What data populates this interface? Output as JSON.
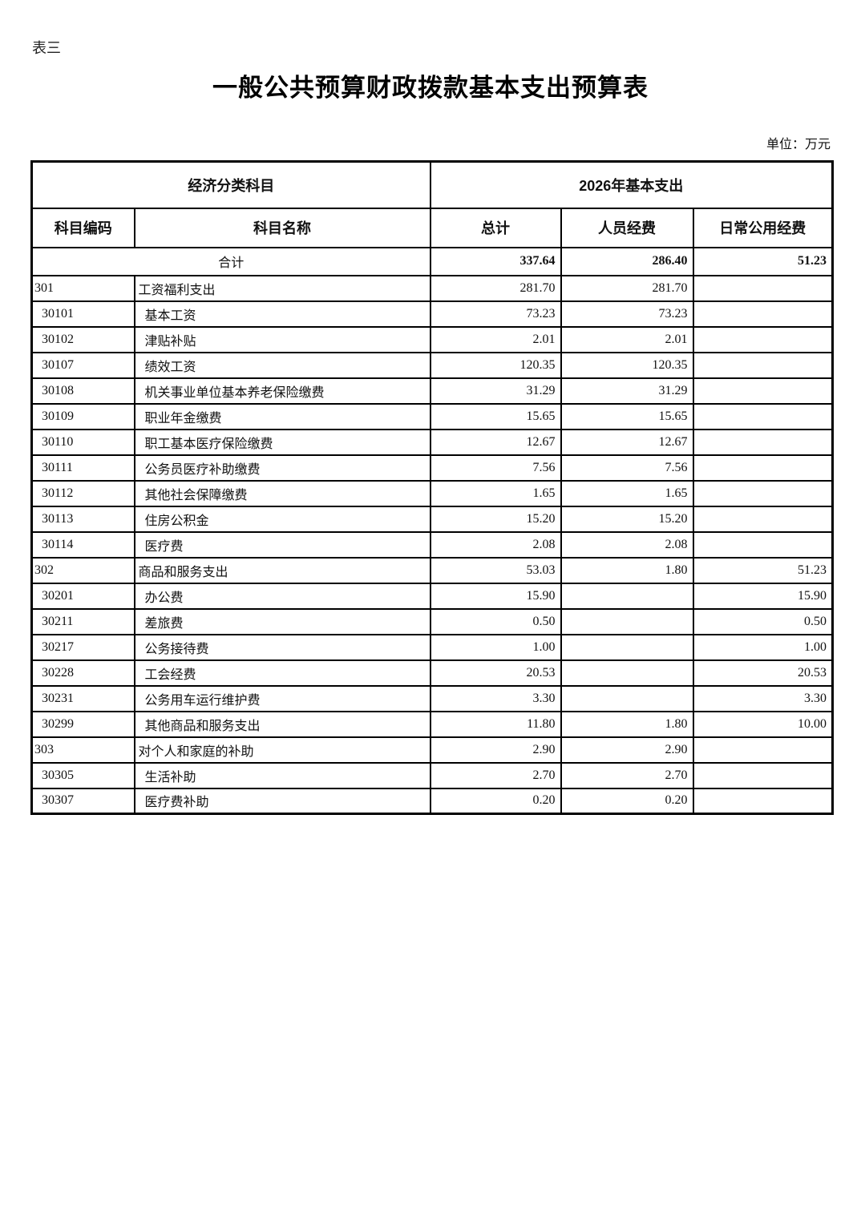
{
  "page": {
    "corner_label": "表三",
    "title": "一般公共预算财政拨款基本支出预算表",
    "unit_note": "单位：万元"
  },
  "table": {
    "header": {
      "group_subject": "经济分类科目",
      "group_year": "2026年基本支出",
      "col_code": "科目编码",
      "col_name": "科目名称",
      "col_total": "总计",
      "col_personnel": "人员经费",
      "col_daily": "日常公用经费"
    },
    "summary_row": {
      "label": "合计",
      "total": "337.64",
      "personnel": "286.40",
      "daily": "51.23"
    },
    "rows": [
      {
        "code": "301",
        "name": "工资福利支出",
        "total": "281.70",
        "personnel": "281.70",
        "daily": "",
        "level": "top"
      },
      {
        "code": "30101",
        "name": "基本工资",
        "total": "73.23",
        "personnel": "73.23",
        "daily": "",
        "level": "sub"
      },
      {
        "code": "30102",
        "name": "津贴补贴",
        "total": "2.01",
        "personnel": "2.01",
        "daily": "",
        "level": "sub"
      },
      {
        "code": "30107",
        "name": "绩效工资",
        "total": "120.35",
        "personnel": "120.35",
        "daily": "",
        "level": "sub"
      },
      {
        "code": "30108",
        "name": "机关事业单位基本养老保险缴费",
        "total": "31.29",
        "personnel": "31.29",
        "daily": "",
        "level": "sub"
      },
      {
        "code": "30109",
        "name": "职业年金缴费",
        "total": "15.65",
        "personnel": "15.65",
        "daily": "",
        "level": "sub"
      },
      {
        "code": "30110",
        "name": "职工基本医疗保险缴费",
        "total": "12.67",
        "personnel": "12.67",
        "daily": "",
        "level": "sub"
      },
      {
        "code": "30111",
        "name": "公务员医疗补助缴费",
        "total": "7.56",
        "personnel": "7.56",
        "daily": "",
        "level": "sub"
      },
      {
        "code": "30112",
        "name": "其他社会保障缴费",
        "total": "1.65",
        "personnel": "1.65",
        "daily": "",
        "level": "sub"
      },
      {
        "code": "30113",
        "name": "住房公积金",
        "total": "15.20",
        "personnel": "15.20",
        "daily": "",
        "level": "sub"
      },
      {
        "code": "30114",
        "name": "医疗费",
        "total": "2.08",
        "personnel": "2.08",
        "daily": "",
        "level": "sub"
      },
      {
        "code": "302",
        "name": "商品和服务支出",
        "total": "53.03",
        "personnel": "1.80",
        "daily": "51.23",
        "level": "top"
      },
      {
        "code": "30201",
        "name": "办公费",
        "total": "15.90",
        "personnel": "",
        "daily": "15.90",
        "level": "sub"
      },
      {
        "code": "30211",
        "name": "差旅费",
        "total": "0.50",
        "personnel": "",
        "daily": "0.50",
        "level": "sub"
      },
      {
        "code": "30217",
        "name": "公务接待费",
        "total": "1.00",
        "personnel": "",
        "daily": "1.00",
        "level": "sub"
      },
      {
        "code": "30228",
        "name": "工会经费",
        "total": "20.53",
        "personnel": "",
        "daily": "20.53",
        "level": "sub"
      },
      {
        "code": "30231",
        "name": "公务用车运行维护费",
        "total": "3.30",
        "personnel": "",
        "daily": "3.30",
        "level": "sub"
      },
      {
        "code": "30299",
        "name": "其他商品和服务支出",
        "total": "11.80",
        "personnel": "1.80",
        "daily": "10.00",
        "level": "sub"
      },
      {
        "code": "303",
        "name": "对个人和家庭的补助",
        "total": "2.90",
        "personnel": "2.90",
        "daily": "",
        "level": "top"
      },
      {
        "code": "30305",
        "name": "生活补助",
        "total": "2.70",
        "personnel": "2.70",
        "daily": "",
        "level": "sub"
      },
      {
        "code": "30307",
        "name": "医疗费补助",
        "total": "0.20",
        "personnel": "0.20",
        "daily": "",
        "level": "sub"
      }
    ]
  }
}
